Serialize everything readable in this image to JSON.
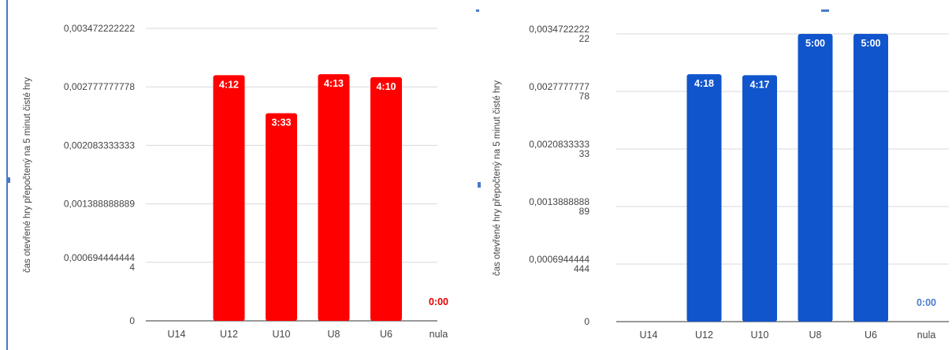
{
  "chart_data": [
    {
      "type": "bar",
      "ylabel": "čas otevřené hry přepočtený na 5 minut čisté hry",
      "categories": [
        "U14",
        "U12",
        "U10",
        "U8",
        "U6",
        "nula"
      ],
      "values": [
        null,
        0.0029166667,
        0.0024652778,
        0.0029282407,
        0.0028935185,
        0
      ],
      "data_labels": [
        "",
        "4:12",
        "3:33",
        "4:13",
        "4:10",
        "0:00"
      ],
      "ylim": [
        0,
        0.0034722222
      ],
      "yticks": [
        0,
        0.0006944444,
        0.0013888889,
        0.0020833333,
        0.0027777778,
        0.0034722222
      ],
      "ytick_labels": [
        [
          "0"
        ],
        [
          "0,000694444444",
          "4"
        ],
        [
          "0,001388888889"
        ],
        [
          "0,002083333333"
        ],
        [
          "0,002777777778"
        ],
        [
          "0,003472222222"
        ]
      ],
      "grid": true,
      "colors": {
        "bar": "#ff0000",
        "zero_label": "#e60000"
      }
    },
    {
      "type": "bar",
      "ylabel": "čas otevřené hry přepočtený na 5 minut čisté hry",
      "categories": [
        "U14",
        "U12",
        "U10",
        "U8",
        "U6",
        "nula"
      ],
      "values": [
        null,
        0.0029861111,
        0.002974537,
        0.0034722222,
        0.0034722222,
        0
      ],
      "data_labels": [
        "",
        "4:18",
        "4:17",
        "5:00",
        "5:00",
        "0:00"
      ],
      "ylim": [
        0,
        0.0034722222
      ],
      "yticks": [
        0,
        0.0006944444,
        0.0013888889,
        0.0020833333,
        0.0027777778,
        0.0034722222
      ],
      "ytick_labels": [
        [
          "0"
        ],
        [
          "0,0006944444",
          "444"
        ],
        [
          "0,0013888888",
          "89"
        ],
        [
          "0,0020833333",
          "33"
        ],
        [
          "0,0027777777",
          "78"
        ],
        [
          "0,0034722222",
          "22"
        ]
      ],
      "grid": true,
      "colors": {
        "bar": "#1155cc",
        "zero_label": "#4a7bd0"
      }
    }
  ]
}
